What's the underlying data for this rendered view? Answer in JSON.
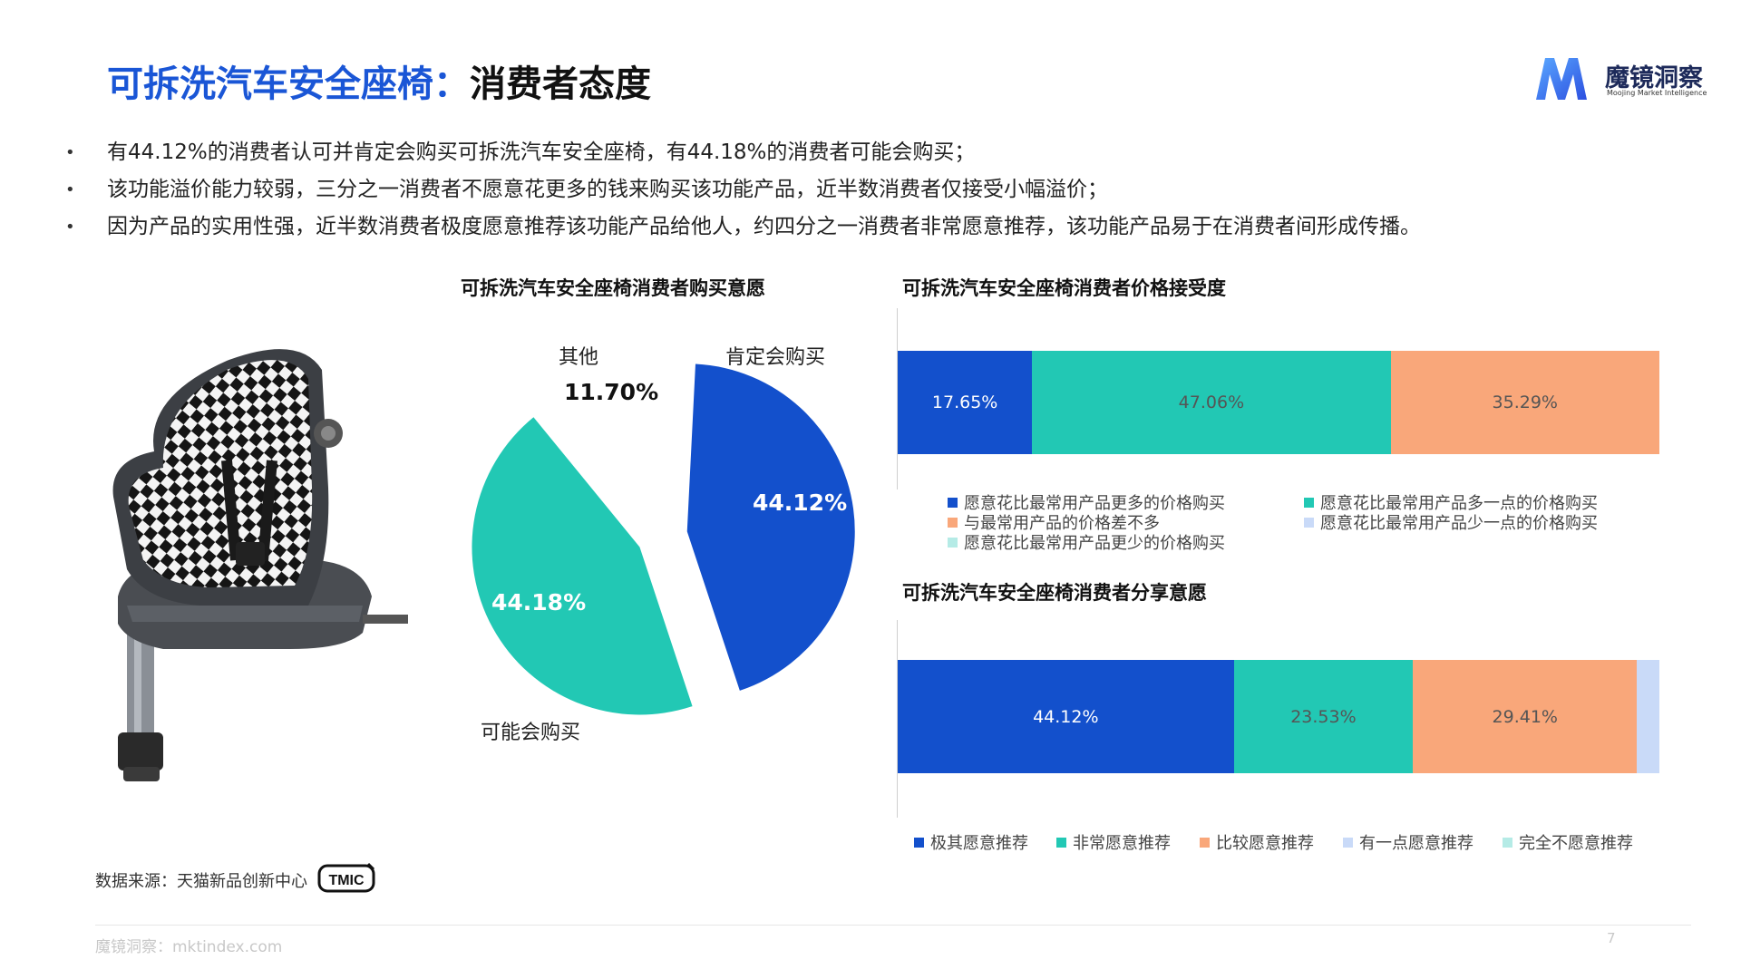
{
  "header": {
    "title_part1": "可拆洗汽车安全座椅：",
    "title_part2": "消费者态度",
    "logo_text": "魔镜洞察",
    "logo_sub": "Moojing Market Intelligence"
  },
  "bullets": [
    "有44.12%的消费者认可并肯定会购买可拆洗汽车安全座椅，有44.18%的消费者可能会购买；",
    "该功能溢价能力较弱，三分之一消费者不愿意花更多的钱来购买该功能产品，近半数消费者仅接受小幅溢价；",
    "因为产品的实用性强，近半数消费者极度愿意推荐该功能产品给他人，约四分之一消费者非常愿意推荐，该功能产品易于在消费者间形成传播。"
  ],
  "colors": {
    "blue": "#1350cc",
    "teal": "#22c8b4",
    "orange": "#f9a77a",
    "lightblue": "#c9daf8",
    "palecyan": "#b5ebe6"
  },
  "chart_data": [
    {
      "type": "pie",
      "title": "可拆洗汽车安全座椅消费者购买意愿",
      "slices": [
        {
          "name": "肯定会购买",
          "value": 44.12,
          "label": "44.12%",
          "color": "#1350cc"
        },
        {
          "name": "可能会购买",
          "value": 44.18,
          "label": "44.18%",
          "color": "#22c8b4"
        },
        {
          "name": "其他",
          "value": 11.7,
          "label": "11.70%",
          "color": "#ffffff"
        }
      ]
    },
    {
      "type": "bar",
      "orientation": "horizontal-stacked",
      "title": "可拆洗汽车安全座椅消费者价格接受度",
      "xlim": [
        0,
        100
      ],
      "segments": [
        {
          "name": "愿意花比最常用产品更多的价格购买",
          "value": 17.65,
          "label": "17.65%",
          "color": "#1350cc"
        },
        {
          "name": "愿意花比最常用产品多一点的价格购买",
          "value": 47.06,
          "label": "47.06%",
          "color": "#22c8b4"
        },
        {
          "name": "与最常用产品的价格差不多",
          "value": 35.29,
          "label": "35.29%",
          "color": "#f9a77a"
        },
        {
          "name": "愿意花比最常用产品少一点的价格购买",
          "value": 0,
          "label": "",
          "color": "#c9daf8"
        },
        {
          "name": "愿意花比最常用产品更少的价格购买",
          "value": 0,
          "label": "",
          "color": "#b5ebe6"
        }
      ],
      "legend": "bottom"
    },
    {
      "type": "bar",
      "orientation": "horizontal-stacked",
      "title": "可拆洗汽车安全座椅消费者分享意愿",
      "xlim": [
        0,
        100
      ],
      "segments": [
        {
          "name": "极其愿意推荐",
          "value": 44.12,
          "label": "44.12%",
          "color": "#1350cc"
        },
        {
          "name": "非常愿意推荐",
          "value": 23.53,
          "label": "23.53%",
          "color": "#22c8b4"
        },
        {
          "name": "比较愿意推荐",
          "value": 29.41,
          "label": "29.41%",
          "color": "#f9a77a"
        },
        {
          "name": "有一点愿意推荐",
          "value": 2.94,
          "label": "",
          "color": "#c9daf8"
        },
        {
          "name": "完全不愿意推荐",
          "value": 0,
          "label": "",
          "color": "#b5ebe6"
        }
      ],
      "legend": "bottom"
    }
  ],
  "source": {
    "text": "数据来源：天猫新品创新中心",
    "badge": "TMIC"
  },
  "footer": {
    "text": "魔镜洞察：mktindex.com",
    "page": "7"
  }
}
